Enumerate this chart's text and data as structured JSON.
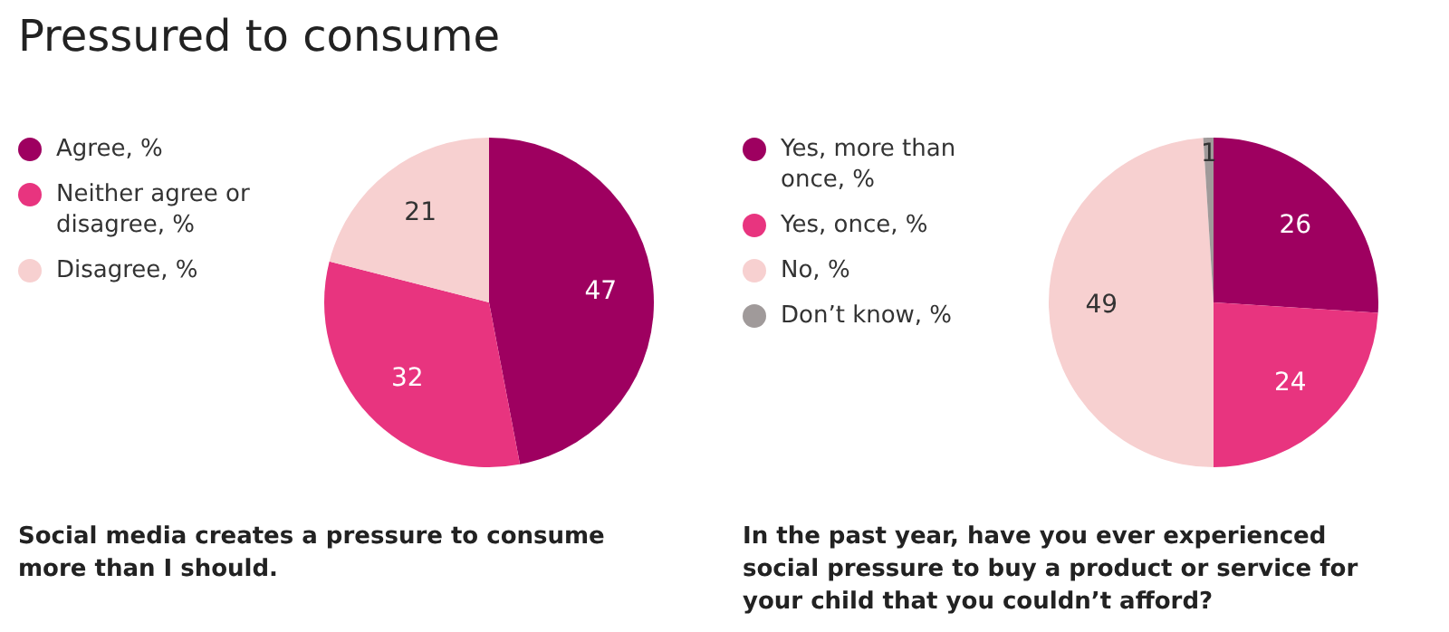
{
  "chart_data": [
    {
      "type": "pie",
      "title": "Pressured to consume",
      "categories": [
        "Agree, %",
        "Neither agree or disagree, %",
        "Disagree, %"
      ],
      "values": [
        47,
        32,
        21
      ],
      "colors": [
        "#9e0060",
        "#e8347f",
        "#f7d0d0"
      ],
      "data_labels": true,
      "legend": "left",
      "annotations": [
        "Social media creates a pressure to consume more than I should."
      ]
    },
    {
      "type": "pie",
      "categories": [
        "Yes, more than once, %",
        "Yes, once, %",
        "No, %",
        "Don’t know, %"
      ],
      "values": [
        26,
        24,
        49,
        1
      ],
      "colors": [
        "#9e0060",
        "#e8347f",
        "#f7d0d0",
        "#a09a9a"
      ],
      "data_labels": true,
      "legend": "left",
      "annotations": [
        "In the past year, have you ever experienced social pressure to buy a product or service for your child that you couldn’t afford?"
      ]
    }
  ]
}
